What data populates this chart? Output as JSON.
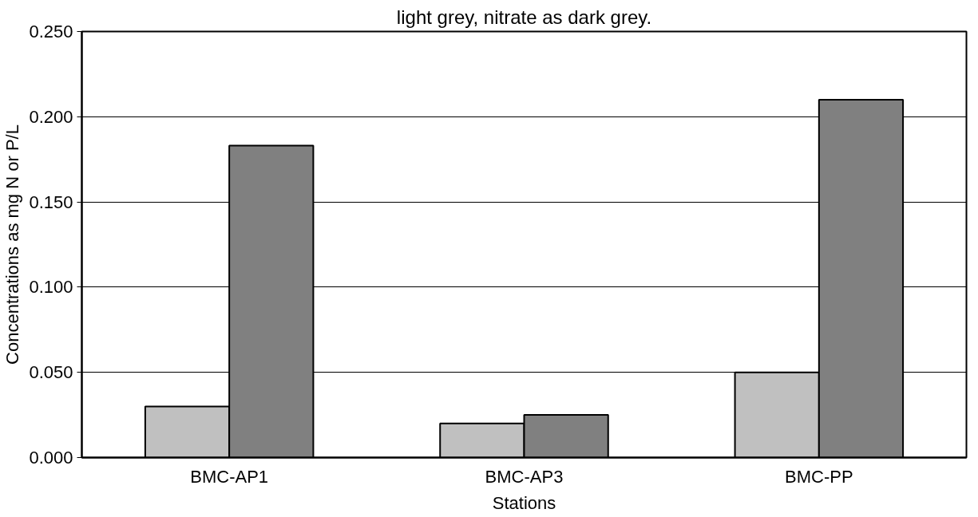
{
  "chart_data": {
    "type": "bar",
    "title": "light grey, nitrate as dark grey.",
    "xlabel": "Stations",
    "ylabel": "Concentrations as mg N or P/L",
    "categories": [
      "BMC-AP1",
      "BMC-AP3",
      "BMC-PP"
    ],
    "series": [
      {
        "color": "#c0c0c0",
        "values": [
          0.03,
          0.02,
          0.05
        ]
      },
      {
        "color": "#808080",
        "values": [
          0.183,
          0.025,
          0.21
        ]
      }
    ],
    "ylim": [
      0,
      0.25
    ],
    "yticks": [
      {
        "value": 0,
        "label": "0.000"
      },
      {
        "value": 0.05,
        "label": "0.050"
      },
      {
        "value": 0.1,
        "label": "0.100"
      },
      {
        "value": 0.15,
        "label": "0.150"
      },
      {
        "value": 0.2,
        "label": "0.200"
      },
      {
        "value": 0.25,
        "label": "0.250"
      }
    ],
    "grid": "y"
  }
}
